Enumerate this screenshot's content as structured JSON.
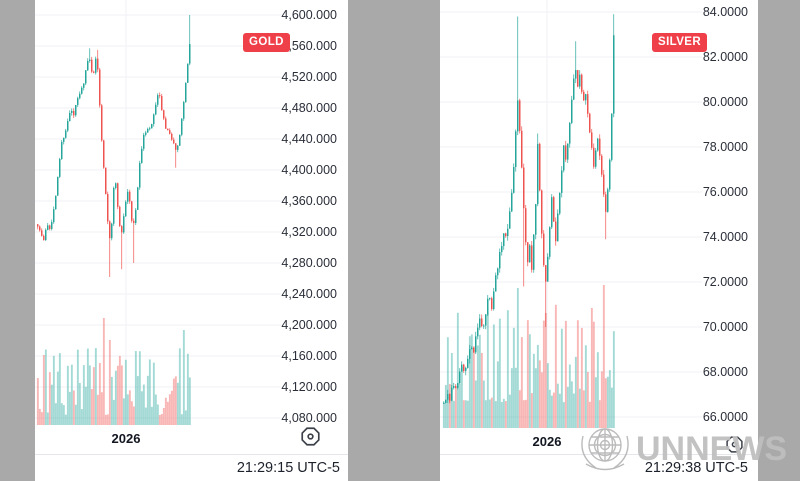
{
  "background_color": "#a9a9a9",
  "watermark": {
    "text": "UNNEWS",
    "emblem_icon": "un-globe-laurel"
  },
  "chart_data": [
    {
      "type": "candlestick",
      "symbol": "GOLD",
      "badge_color": "#ef404a",
      "up_color": "#26a69a",
      "down_color": "#ef5350",
      "grid_color": "#f0f2f6",
      "timestamp": "21:29:15 UTC-5",
      "x_axis_label": "2026",
      "y_ticks": [
        "4,600.000",
        "4,560.000",
        "4,520.000",
        "4,480.000",
        "4,440.000",
        "4,400.000",
        "4,360.000",
        "4,320.000",
        "4,280.000",
        "4,240.000",
        "4,200.000",
        "4,160.000",
        "4,120.000",
        "4,080.000"
      ],
      "scale": {
        "top_value": 4600,
        "tick_step": 40
      },
      "price_range_shown": [
        4080,
        4600
      ],
      "seed": 7,
      "keyframes": [
        [
          2,
          4330
        ],
        [
          5,
          4318
        ],
        [
          8,
          4308
        ],
        [
          11,
          4332
        ],
        [
          14,
          4326
        ],
        [
          17,
          4340
        ],
        [
          20,
          4365
        ],
        [
          23,
          4405
        ],
        [
          26,
          4435
        ],
        [
          29,
          4448
        ],
        [
          32,
          4462
        ],
        [
          35,
          4478
        ],
        [
          38,
          4470
        ],
        [
          41,
          4488
        ],
        [
          44,
          4498
        ],
        [
          47,
          4508
        ],
        [
          50,
          4528
        ],
        [
          53,
          4545
        ],
        [
          55,
          4538
        ],
        [
          57,
          4520
        ],
        [
          59,
          4535
        ],
        [
          61,
          4548
        ],
        [
          63,
          4510
        ],
        [
          65,
          4460
        ],
        [
          67,
          4420
        ],
        [
          69,
          4390
        ],
        [
          71,
          4352
        ],
        [
          73,
          4320
        ],
        [
          75,
          4308
        ],
        [
          77,
          4355
        ],
        [
          79,
          4395
        ],
        [
          81,
          4370
        ],
        [
          83,
          4340
        ],
        [
          85,
          4312
        ],
        [
          87,
          4330
        ],
        [
          89,
          4352
        ],
        [
          91,
          4368
        ],
        [
          93,
          4375
        ],
        [
          95,
          4345
        ],
        [
          97,
          4322
        ],
        [
          99,
          4340
        ],
        [
          101,
          4362
        ],
        [
          103,
          4395
        ],
        [
          105,
          4418
        ],
        [
          107,
          4440
        ],
        [
          109,
          4452
        ],
        [
          111,
          4442
        ],
        [
          113,
          4460
        ],
        [
          115,
          4448
        ],
        [
          117,
          4465
        ],
        [
          119,
          4478
        ],
        [
          121,
          4490
        ],
        [
          123,
          4498
        ],
        [
          125,
          4488
        ],
        [
          127,
          4470
        ],
        [
          129,
          4458
        ],
        [
          131,
          4445
        ],
        [
          133,
          4452
        ],
        [
          135,
          4438
        ],
        [
          137,
          4445
        ],
        [
          139,
          4428
        ],
        [
          141,
          4420
        ],
        [
          143,
          4438
        ],
        [
          145,
          4455
        ],
        [
          147,
          4475
        ],
        [
          149,
          4500
        ],
        [
          151,
          4522
        ],
        [
          153,
          4548
        ],
        [
          155,
          4572
        ]
      ],
      "wicks": [
        [
          53,
          4557,
          "h"
        ],
        [
          61,
          4555,
          "h"
        ],
        [
          73,
          4262,
          "l"
        ],
        [
          85,
          4272,
          "l"
        ],
        [
          97,
          4280,
          "l"
        ],
        [
          139,
          4403,
          "l"
        ],
        [
          155,
          4600,
          "h"
        ]
      ],
      "render_hints": {
        "noise": 5,
        "wick_amp": 6,
        "vol_min": 10,
        "vol_max": 78,
        "vol_spikes": [
          [
            8,
            70
          ],
          [
            68,
            107
          ],
          [
            74,
            85
          ],
          [
            148,
            95
          ]
        ]
      }
    },
    {
      "type": "candlestick",
      "symbol": "SILVER",
      "badge_color": "#ef404a",
      "up_color": "#26a69a",
      "down_color": "#ef5350",
      "grid_color": "#f0f2f6",
      "timestamp": "21:29:38 UTC-5",
      "x_axis_label": "2026",
      "y_ticks": [
        "84.0000",
        "82.0000",
        "80.0000",
        "78.0000",
        "76.0000",
        "74.0000",
        "72.0000",
        "70.0000",
        "68.0000",
        "66.0000"
      ],
      "scale": {
        "top_value": 84,
        "tick_step": 2
      },
      "price_range_shown": [
        66,
        84
      ],
      "seed": 13,
      "keyframes": [
        [
          3,
          66.6
        ],
        [
          6,
          67.1
        ],
        [
          9,
          66.8
        ],
        [
          12,
          67.5
        ],
        [
          15,
          67.2
        ],
        [
          18,
          67.9
        ],
        [
          21,
          68.4
        ],
        [
          24,
          68.1
        ],
        [
          27,
          68.7
        ],
        [
          30,
          69.3
        ],
        [
          33,
          69.0
        ],
        [
          36,
          69.7
        ],
        [
          39,
          70.3
        ],
        [
          42,
          69.9
        ],
        [
          45,
          70.7
        ],
        [
          48,
          71.3
        ],
        [
          51,
          70.8
        ],
        [
          54,
          71.9
        ],
        [
          57,
          72.6
        ],
        [
          60,
          73.5
        ],
        [
          63,
          74.3
        ],
        [
          66,
          74.0
        ],
        [
          69,
          75.1
        ],
        [
          72,
          76.3
        ],
        [
          75,
          78.6
        ],
        [
          77,
          80.2
        ],
        [
          79,
          78.6
        ],
        [
          81,
          77.0
        ],
        [
          83,
          75.2
        ],
        [
          85,
          73.9
        ],
        [
          87,
          72.8
        ],
        [
          89,
          73.6
        ],
        [
          91,
          72.4
        ],
        [
          93,
          74.1
        ],
        [
          95,
          75.6
        ],
        [
          97,
          78.0
        ],
        [
          99,
          76.1
        ],
        [
          101,
          74.2
        ],
        [
          103,
          72.6
        ],
        [
          105,
          71.9
        ],
        [
          107,
          73.2
        ],
        [
          109,
          74.6
        ],
        [
          111,
          75.9
        ],
        [
          113,
          74.7
        ],
        [
          115,
          73.7
        ],
        [
          117,
          74.9
        ],
        [
          119,
          76.1
        ],
        [
          121,
          77.1
        ],
        [
          123,
          77.9
        ],
        [
          125,
          77.3
        ],
        [
          127,
          78.1
        ],
        [
          129,
          79.0
        ],
        [
          131,
          80.1
        ],
        [
          133,
          81.0
        ],
        [
          135,
          81.4
        ],
        [
          137,
          80.7
        ],
        [
          139,
          81.3
        ],
        [
          141,
          80.5
        ],
        [
          143,
          79.9
        ],
        [
          145,
          80.4
        ],
        [
          147,
          79.5
        ],
        [
          149,
          78.7
        ],
        [
          151,
          78.0
        ],
        [
          153,
          77.3
        ],
        [
          155,
          77.9
        ],
        [
          157,
          78.3
        ],
        [
          159,
          77.5
        ],
        [
          161,
          76.6
        ],
        [
          163,
          75.8
        ],
        [
          165,
          75.1
        ],
        [
          167,
          76.2
        ],
        [
          169,
          77.4
        ],
        [
          171,
          79.5
        ],
        [
          173,
          82.8
        ]
      ],
      "wicks": [
        [
          77,
          83.8,
          "h"
        ],
        [
          83,
          71.8,
          "l"
        ],
        [
          97,
          78.6,
          "h"
        ],
        [
          105,
          70.0,
          "l"
        ],
        [
          135,
          82.7,
          "h"
        ],
        [
          165,
          73.9,
          "l"
        ],
        [
          173,
          83.9,
          "h"
        ]
      ],
      "render_hints": {
        "noise": 0.3,
        "wick_amp": 0.35,
        "vol_min": 25,
        "vol_max": 130,
        "vol_spikes": [
          [
            77,
            140
          ],
          [
            105,
            115
          ],
          [
            151,
            120
          ],
          [
            163,
            143
          ]
        ]
      }
    }
  ]
}
